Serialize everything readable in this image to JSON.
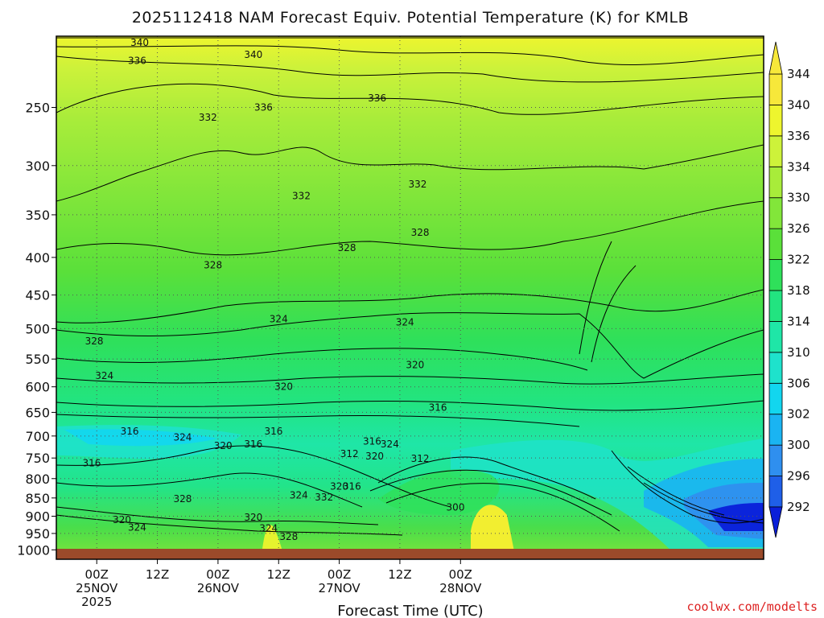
{
  "chart_data": {
    "type": "contour",
    "title": "2025112418 NAM Forecast Equiv. Potential Temperature (K) for KMLB",
    "xlabel": "Forecast Time (UTC)",
    "ylabel": "",
    "y_scale": "log-pressure",
    "y_inverted": true,
    "ylim": [
      1030,
      200
    ],
    "y_ticks": [
      250,
      300,
      350,
      400,
      450,
      500,
      550,
      600,
      650,
      700,
      750,
      800,
      850,
      900,
      950,
      1000
    ],
    "x_range_hours": [
      -8,
      132
    ],
    "x_ticks": [
      {
        "hour": 0,
        "lines": [
          "00Z",
          "25NOV",
          "2025"
        ]
      },
      {
        "hour": 12,
        "lines": [
          "12Z"
        ]
      },
      {
        "hour": 24,
        "lines": [
          "00Z",
          "26NOV"
        ]
      },
      {
        "hour": 36,
        "lines": [
          "12Z"
        ]
      },
      {
        "hour": 48,
        "lines": [
          "00Z",
          "27NOV"
        ]
      },
      {
        "hour": 60,
        "lines": [
          "12Z"
        ]
      },
      {
        "hour": 72,
        "lines": [
          "00Z",
          "28NOV"
        ]
      }
    ],
    "grid": true,
    "units": "K",
    "colorbar": {
      "levels": [
        292,
        296,
        300,
        302,
        306,
        310,
        314,
        318,
        322,
        326,
        330,
        334,
        336,
        340,
        344
      ],
      "colors": [
        "#0a1fd9",
        "#1f5fe8",
        "#2f8fef",
        "#1ab4f2",
        "#12d6ef",
        "#1ee2cc",
        "#1fe6a7",
        "#22e480",
        "#2fe05a",
        "#5ae03a",
        "#82e63a",
        "#a8ec3a",
        "#cdf23a",
        "#eef52e",
        "#f7e83a"
      ]
    },
    "contour_labels": [
      {
        "hour": 8.5,
        "p": 204,
        "text": "340"
      },
      {
        "hour": 31,
        "p": 212,
        "text": "340"
      },
      {
        "hour": 8,
        "p": 216,
        "text": "336"
      },
      {
        "hour": 33,
        "p": 250,
        "text": "336"
      },
      {
        "hour": 55.5,
        "p": 243,
        "text": "336"
      },
      {
        "hour": 22,
        "p": 258,
        "text": "332"
      },
      {
        "hour": 40.5,
        "p": 330,
        "text": "332"
      },
      {
        "hour": 63.5,
        "p": 318,
        "text": "332"
      },
      {
        "hour": 23,
        "p": 410,
        "text": "328"
      },
      {
        "hour": 49.5,
        "p": 388,
        "text": "328"
      },
      {
        "hour": 64,
        "p": 370,
        "text": "328"
      },
      {
        "hour": 36,
        "p": 485,
        "text": "324"
      },
      {
        "hour": 61,
        "p": 490,
        "text": "324"
      },
      {
        "hour": -0.5,
        "p": 520,
        "text": "328"
      },
      {
        "hour": 1.5,
        "p": 580,
        "text": "324"
      },
      {
        "hour": 37,
        "p": 600,
        "text": "320"
      },
      {
        "hour": 63,
        "p": 560,
        "text": "320"
      },
      {
        "hour": 67.5,
        "p": 640,
        "text": "316"
      },
      {
        "hour": 6.5,
        "p": 690,
        "text": "316"
      },
      {
        "hour": 35,
        "p": 690,
        "text": "316"
      },
      {
        "hour": 31,
        "p": 718,
        "text": "316"
      },
      {
        "hour": 25,
        "p": 722,
        "text": "320"
      },
      {
        "hour": 17,
        "p": 703,
        "text": "324"
      },
      {
        "hour": 54.5,
        "p": 712,
        "text": "316"
      },
      {
        "hour": 58,
        "p": 718,
        "text": "324"
      },
      {
        "hour": 50,
        "p": 740,
        "text": "312"
      },
      {
        "hour": 55,
        "p": 746,
        "text": "320"
      },
      {
        "hour": 64,
        "p": 752,
        "text": "312"
      },
      {
        "hour": -1,
        "p": 762,
        "text": "316"
      },
      {
        "hour": 48,
        "p": 820,
        "text": "320"
      },
      {
        "hour": 50.5,
        "p": 820,
        "text": "316"
      },
      {
        "hour": 45,
        "p": 848,
        "text": "332"
      },
      {
        "hour": 40,
        "p": 843,
        "text": "324"
      },
      {
        "hour": 17,
        "p": 853,
        "text": "328"
      },
      {
        "hour": 5,
        "p": 910,
        "text": "320"
      },
      {
        "hour": 8,
        "p": 932,
        "text": "324"
      },
      {
        "hour": 31,
        "p": 903,
        "text": "320"
      },
      {
        "hour": 34,
        "p": 935,
        "text": "324"
      },
      {
        "hour": 38,
        "p": 960,
        "text": "328"
      },
      {
        "hour": 71,
        "p": 875,
        "text": "300"
      }
    ]
  },
  "credit": "coolwx.com/modelts"
}
